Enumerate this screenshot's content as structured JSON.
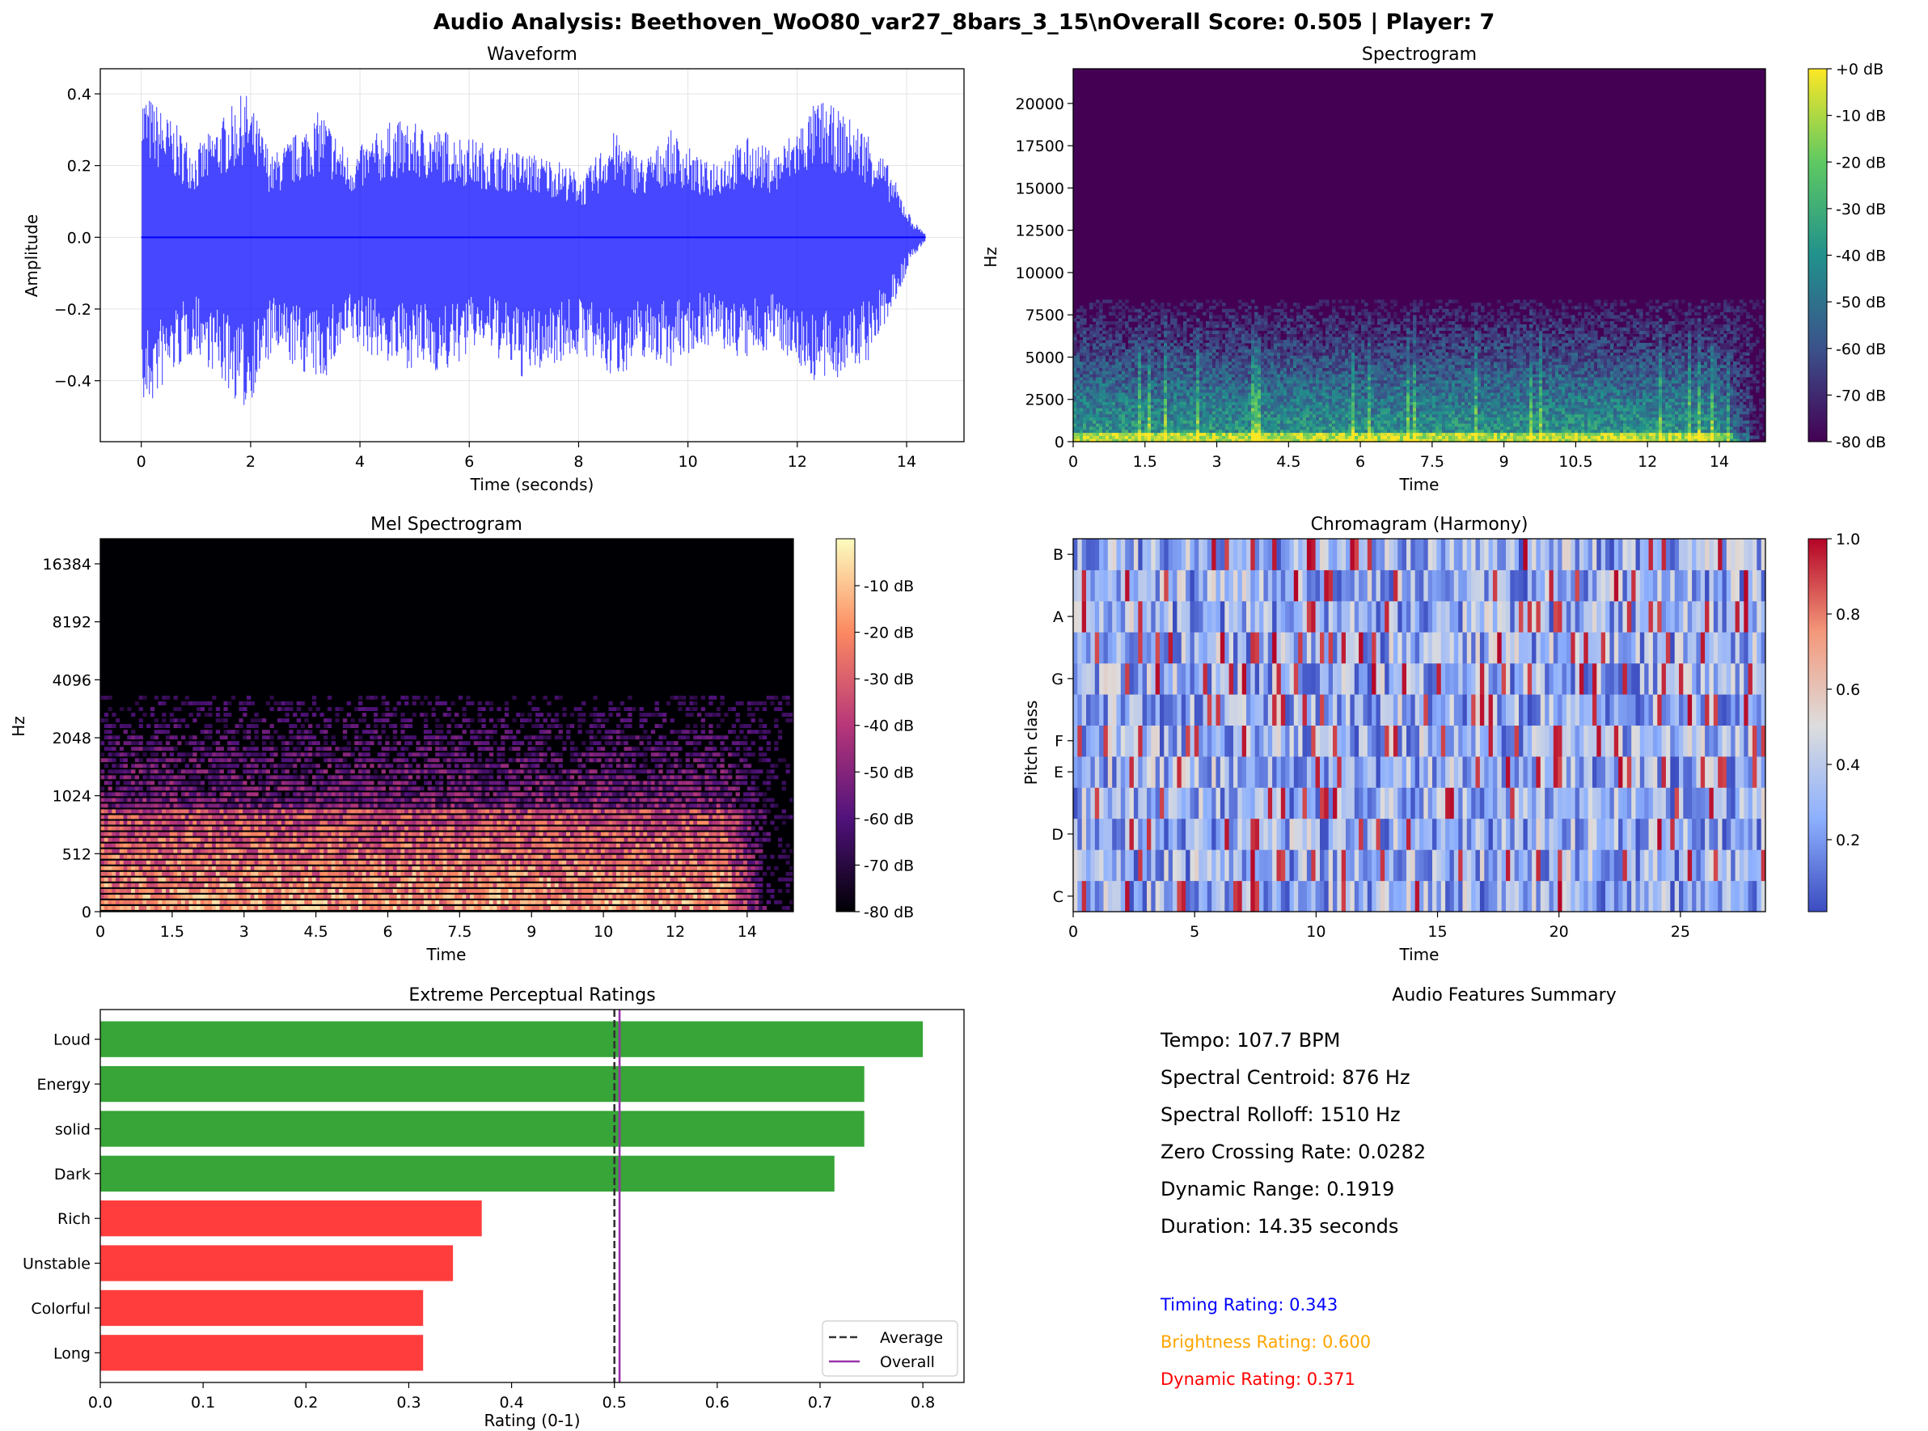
{
  "figure": {
    "title": "Audio Analysis: Beethoven_WoO80_var27_8bars_3_15\\nOverall Score: 0.505 | Player: 7"
  },
  "waveform": {
    "title": "Waveform",
    "xlabel": "Time (seconds)",
    "ylabel": "Amplitude",
    "xticks": [
      "0",
      "2",
      "4",
      "6",
      "8",
      "10",
      "12",
      "14"
    ],
    "yticks": [
      "0.4",
      "0.2",
      "0.0",
      "−0.2",
      "−0.4"
    ],
    "color": "#0000ff"
  },
  "spectrogram": {
    "title": "Spectrogram",
    "xlabel": "Time",
    "ylabel": "Hz",
    "xticks": [
      "0",
      "1.5",
      "3",
      "4.5",
      "6",
      "7.5",
      "9",
      "10.5",
      "12",
      "14"
    ],
    "yticks": [
      "20000",
      "17500",
      "15000",
      "12500",
      "10000",
      "7500",
      "5000",
      "2500",
      "0"
    ],
    "colorbar": [
      "+0 dB",
      "-10 dB",
      "-20 dB",
      "-30 dB",
      "-40 dB",
      "-50 dB",
      "-60 dB",
      "-70 dB",
      "-80 dB"
    ],
    "colormap": "viridis"
  },
  "mel": {
    "title": "Mel Spectrogram",
    "xlabel": "Time",
    "ylabel": "Hz",
    "xticks": [
      "0",
      "1.5",
      "3",
      "4.5",
      "6",
      "7.5",
      "9",
      "10",
      "12",
      "14"
    ],
    "yticks": [
      "16384",
      "8192",
      "4096",
      "2048",
      "1024",
      "512",
      "0"
    ],
    "colorbar": [
      "-10 dB",
      "-20 dB",
      "-30 dB",
      "-40 dB",
      "-50 dB",
      "-60 dB",
      "-70 dB",
      "-80 dB"
    ],
    "colormap": "magma"
  },
  "chroma": {
    "title": "Chromagram (Harmony)",
    "xlabel": "Time",
    "ylabel": "Pitch class",
    "xticks": [
      "0",
      "5",
      "10",
      "15",
      "20",
      "25"
    ],
    "yticks": [
      "B",
      "A",
      "G",
      "F",
      "E",
      "D",
      "C"
    ],
    "colorbar": [
      "1.0",
      "0.8",
      "0.6",
      "0.4",
      "0.2"
    ],
    "colormap": "coolwarm"
  },
  "ratings_panel": {
    "title": "Extreme Perceptual Ratings",
    "xlabel": "Rating (0-1)",
    "legend": {
      "average": "Average",
      "overall": "Overall"
    }
  },
  "summary": {
    "title": "Audio Features Summary",
    "lines": [
      "Tempo: 107.7 BPM",
      "Spectral Centroid: 876 Hz",
      "Spectral Rolloff: 1510 Hz",
      "Zero Crossing Rate: 0.0282",
      "Dynamic Range: 0.1919",
      "Duration: 14.35 seconds"
    ],
    "ratings": [
      {
        "text": "Timing Rating: 0.343",
        "color": "#0000ff"
      },
      {
        "text": "Brightness Rating: 0.600",
        "color": "#ffa500"
      },
      {
        "text": "Dynamic Rating: 0.371",
        "color": "#ff0000"
      }
    ]
  },
  "chart_data": [
    {
      "type": "line",
      "title": "Waveform",
      "xlabel": "Time (seconds)",
      "ylabel": "Amplitude",
      "xlim": [
        -0.75,
        15.05
      ],
      "ylim": [
        -0.57,
        0.47
      ],
      "grid": true,
      "duration": 14.35,
      "envelope": {
        "x": [
          0,
          0.5,
          1,
          1.9,
          2.4,
          3.3,
          3.8,
          4.6,
          5.6,
          6.2,
          7,
          7.6,
          8.1,
          8.6,
          9.2,
          9.7,
          10.3,
          11.1,
          11.6,
          12.4,
          13.3,
          13.7,
          14.1,
          14.35
        ],
        "upper": [
          0.42,
          0.34,
          0.25,
          0.41,
          0.23,
          0.36,
          0.23,
          0.33,
          0.3,
          0.27,
          0.24,
          0.22,
          0.17,
          0.3,
          0.22,
          0.3,
          0.21,
          0.28,
          0.24,
          0.39,
          0.3,
          0.19,
          0.05,
          0.01
        ],
        "lower": [
          -0.52,
          -0.4,
          -0.32,
          -0.49,
          -0.33,
          -0.41,
          -0.3,
          -0.36,
          -0.38,
          -0.3,
          -0.4,
          -0.35,
          -0.33,
          -0.4,
          -0.34,
          -0.36,
          -0.3,
          -0.35,
          -0.3,
          -0.42,
          -0.35,
          -0.22,
          -0.06,
          -0.01
        ]
      }
    },
    {
      "type": "heatmap",
      "title": "Spectrogram",
      "xlabel": "Time",
      "ylabel": "Hz",
      "xlim": [
        0,
        15
      ],
      "ylim": [
        0,
        22050
      ],
      "clim": [
        -80,
        0
      ],
      "energy_ceiling_hz": 8000
    },
    {
      "type": "heatmap",
      "title": "Mel Spectrogram",
      "xlabel": "Time",
      "ylabel": "Hz",
      "xlim": [
        0,
        15
      ],
      "clim": [
        -80,
        0
      ],
      "energy_ceiling_hz": 3500
    },
    {
      "type": "heatmap",
      "title": "Chromagram (Harmony)",
      "xlabel": "Time",
      "ylabel": "Pitch class",
      "xlim": [
        0,
        28.5
      ],
      "clim": [
        0,
        1
      ],
      "pitch_classes": [
        "C",
        "C#",
        "D",
        "D#",
        "E",
        "F",
        "F#",
        "G",
        "G#",
        "A",
        "A#",
        "B"
      ]
    },
    {
      "type": "bar",
      "orientation": "horizontal",
      "title": "Extreme Perceptual Ratings",
      "xlabel": "Rating (0-1)",
      "categories": [
        "Loud",
        "Energy",
        "solid",
        "Dark",
        "Rich",
        "Unstable",
        "Colorful",
        "Long"
      ],
      "values": [
        0.8,
        0.743,
        0.743,
        0.714,
        0.371,
        0.343,
        0.314,
        0.314
      ],
      "colors": [
        "#2ca02c",
        "#2ca02c",
        "#2ca02c",
        "#2ca02c",
        "#ff3333",
        "#ff3333",
        "#ff3333",
        "#ff3333"
      ],
      "xlim": [
        0,
        0.84
      ],
      "xticks": [
        "0.0",
        "0.1",
        "0.2",
        "0.3",
        "0.4",
        "0.5",
        "0.6",
        "0.7",
        "0.8"
      ],
      "average": 0.5,
      "overall": 0.505,
      "legend": "lower right"
    }
  ]
}
